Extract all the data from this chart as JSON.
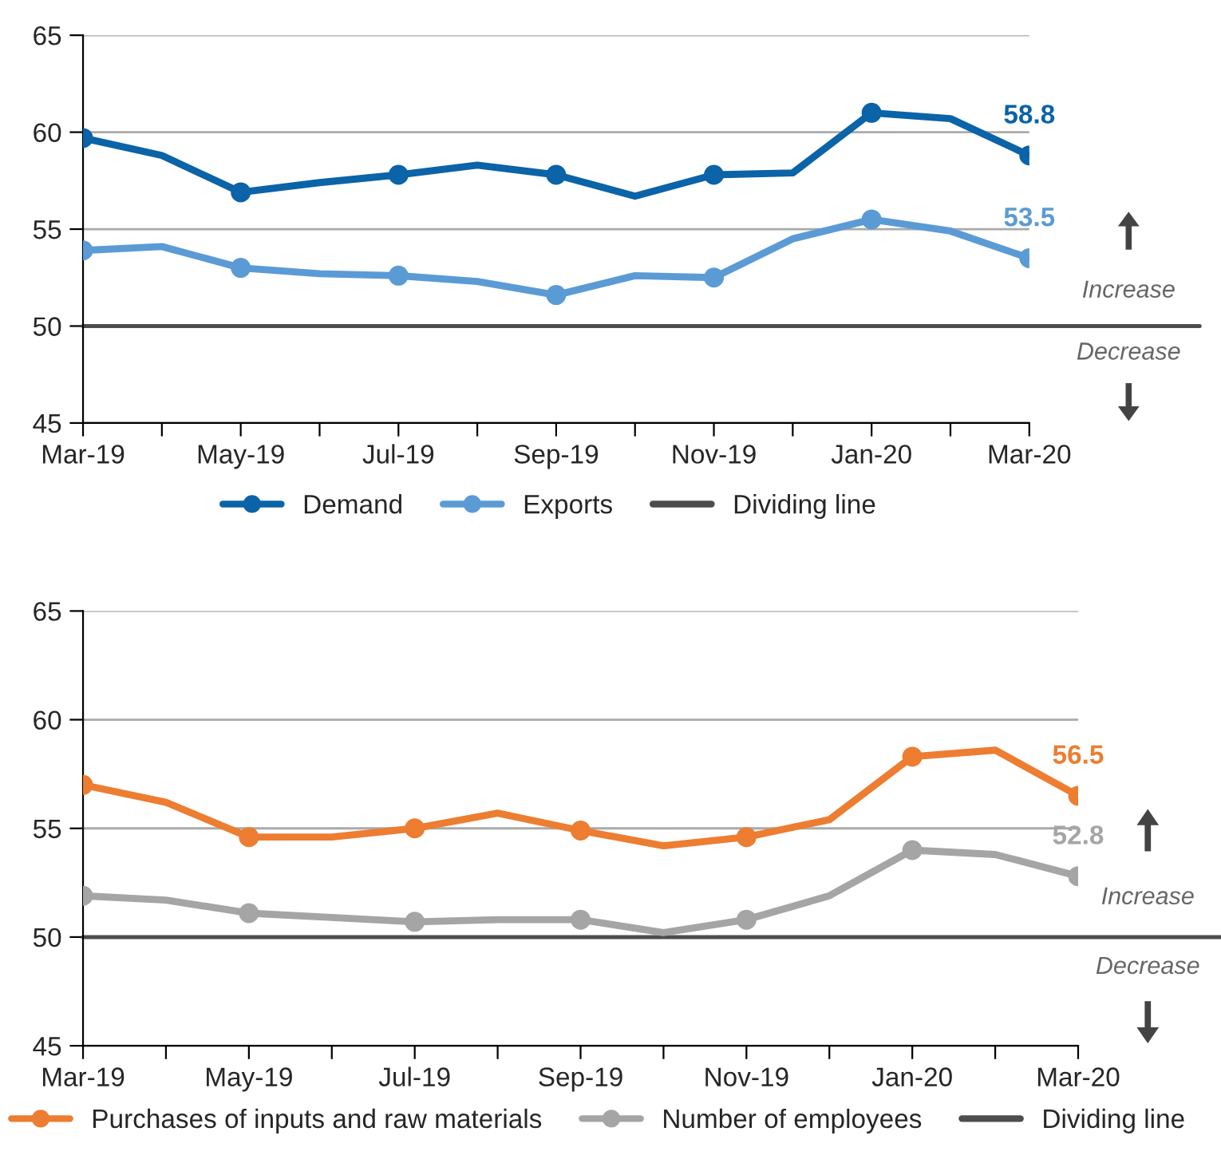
{
  "chart_data": [
    {
      "type": "line",
      "categories": [
        "Mar-19",
        null,
        "May-19",
        null,
        "Jul-19",
        null,
        "Sep-19",
        null,
        "Nov-19",
        null,
        "Jan-20",
        null,
        "Mar-20"
      ],
      "series": [
        {
          "name": "Demand",
          "color": "#0b63a8",
          "values": [
            59.7,
            58.8,
            56.9,
            57.4,
            57.8,
            58.3,
            57.8,
            56.7,
            57.8,
            57.9,
            61.0,
            60.7,
            58.8
          ],
          "value_labels": [
            null,
            null,
            null,
            null,
            null,
            null,
            null,
            null,
            null,
            null,
            null,
            null,
            "58.8"
          ]
        },
        {
          "name": "Exports",
          "color": "#5b9bd5",
          "values": [
            53.9,
            54.1,
            53.0,
            52.7,
            52.6,
            52.3,
            51.6,
            52.6,
            52.5,
            54.5,
            55.5,
            54.9,
            53.5
          ],
          "value_labels": [
            null,
            null,
            null,
            null,
            null,
            null,
            null,
            null,
            null,
            null,
            null,
            null,
            "53.5"
          ]
        }
      ],
      "ylim": [
        45,
        65
      ],
      "yticks": [
        45,
        50,
        55,
        60,
        65
      ],
      "grid": "y",
      "marker": "circle",
      "line_style": "solid",
      "legend": "bottom",
      "ref_lines": [
        {
          "axis": "y",
          "value": 50,
          "label": "Dividing line",
          "color": "#4d4d4d"
        }
      ],
      "annotations": [
        "Increase",
        "Decrease"
      ]
    },
    {
      "type": "line",
      "categories": [
        "Mar-19",
        null,
        "May-19",
        null,
        "Jul-19",
        null,
        "Sep-19",
        null,
        "Nov-19",
        null,
        "Jan-20",
        null,
        "Mar-20"
      ],
      "series": [
        {
          "name": "Purchases of inputs and raw materials",
          "color": "#ed7d31",
          "values": [
            57.0,
            56.2,
            54.6,
            54.6,
            55.0,
            55.7,
            54.9,
            54.2,
            54.6,
            55.4,
            58.3,
            58.6,
            56.5
          ],
          "value_labels": [
            null,
            null,
            null,
            null,
            null,
            null,
            null,
            null,
            null,
            null,
            null,
            null,
            "56.5"
          ]
        },
        {
          "name": "Number of employees",
          "color": "#a5a5a5",
          "values": [
            51.9,
            51.7,
            51.1,
            50.9,
            50.7,
            50.8,
            50.8,
            50.2,
            50.8,
            51.9,
            54.0,
            53.8,
            52.8
          ],
          "value_labels": [
            null,
            null,
            null,
            null,
            null,
            null,
            null,
            null,
            null,
            null,
            null,
            null,
            "52.8"
          ]
        }
      ],
      "ylim": [
        45,
        65
      ],
      "yticks": [
        45,
        50,
        55,
        60,
        65
      ],
      "grid": "y",
      "marker": "circle",
      "line_style": "solid",
      "legend": "bottom",
      "ref_lines": [
        {
          "axis": "y",
          "value": 50,
          "label": "Dividing line",
          "color": "#4d4d4d"
        }
      ],
      "annotations": [
        "Increase",
        "Decrease"
      ]
    }
  ]
}
